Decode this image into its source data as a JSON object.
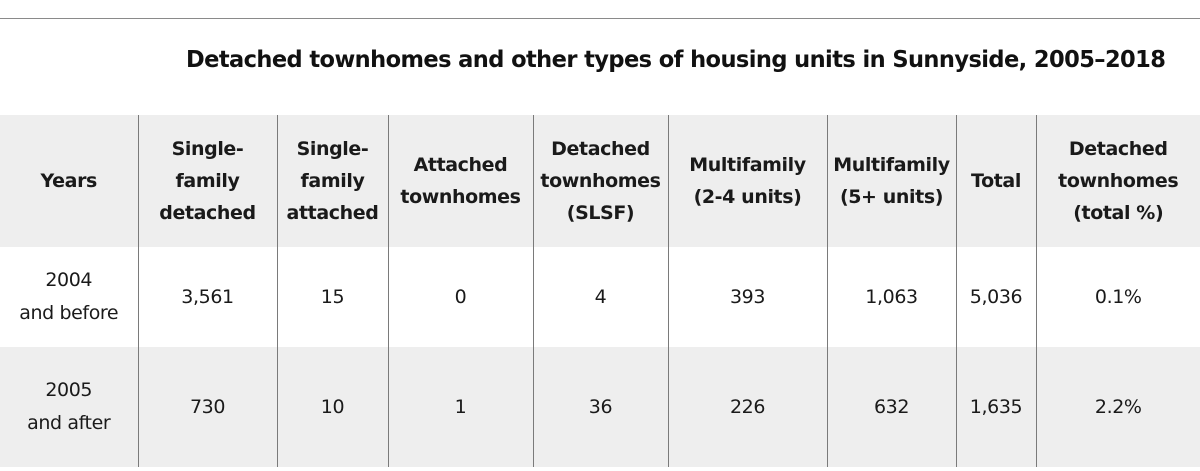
{
  "title": "Detached townhomes and other types of housing units in Sunnyside, 2005–2018",
  "headers": [
    "Years",
    "Single-\nfamily\ndetached",
    "Single-\nfamily\nattached",
    "Attached\ntownhomes",
    "Detached\ntownhomes\n(SLSF)",
    "Multifamily\n(2-4 units)",
    "Multifamily\n(5+ units)",
    "Total",
    "Detached\ntownhomes\n(total %)"
  ],
  "rows": [
    {
      "years": "2004\nand before",
      "single_family_detached": "3,561",
      "single_family_attached": "15",
      "attached_townhomes": "0",
      "detached_townhomes_slsf": "4",
      "multifamily_2_4": "393",
      "multifamily_5_plus": "1,063",
      "total": "5,036",
      "detached_townhomes_pct": "0.1%"
    },
    {
      "years": "2005\nand after",
      "single_family_detached": "730",
      "single_family_attached": "10",
      "attached_townhomes": "1",
      "detached_townhomes_slsf": "36",
      "multifamily_2_4": "226",
      "multifamily_5_plus": "632",
      "total": "1,635",
      "detached_townhomes_pct": "2.2%"
    }
  ]
}
